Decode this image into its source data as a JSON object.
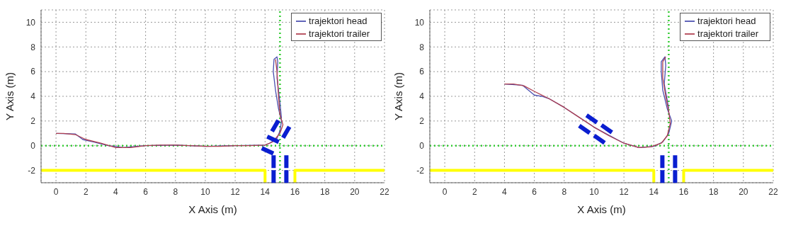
{
  "chart_data": [
    {
      "type": "line",
      "xlabel": "X Axis (m)",
      "ylabel": "Y Axis (m)",
      "xlim": [
        -1,
        22
      ],
      "ylim": [
        -3,
        11
      ],
      "xticks": [
        0,
        2,
        4,
        6,
        8,
        10,
        12,
        14,
        16,
        18,
        20,
        22
      ],
      "yticks": [
        -2,
        0,
        2,
        4,
        6,
        8,
        10
      ],
      "grid": true,
      "legend": "top right",
      "marker": "none",
      "line_style": "solid",
      "ref_lines": [
        {
          "axis": "y",
          "value": 0,
          "color": "#33cc33",
          "line_style": "dotted"
        },
        {
          "axis": "x",
          "value": 15,
          "color": "#33cc33",
          "line_style": "dotted"
        }
      ],
      "series": [
        {
          "color": "#ffff00",
          "x": [
            -1,
            14,
            14
          ],
          "values": [
            -2,
            -2,
            -3
          ]
        },
        {
          "color": "#ffff00",
          "x": [
            16,
            16,
            22
          ],
          "values": [
            -3,
            -2,
            -2
          ]
        },
        {
          "name": "trajektori head",
          "color": "#4b4fb0",
          "x": [
            0,
            1.3,
            1.8,
            2.5,
            3.5,
            4.5,
            6,
            8,
            10,
            12,
            14,
            14.3,
            14.8,
            15,
            15.1,
            14.9,
            14.7,
            14.55,
            14.6,
            14.8,
            14.85,
            14.8,
            15,
            15.1
          ],
          "values": [
            1,
            0.95,
            0.5,
            0.3,
            0,
            -0.15,
            0,
            0.05,
            -0.05,
            0,
            0.05,
            0.2,
            0.6,
            1.2,
            2,
            3,
            4.5,
            6,
            7,
            7.2,
            6.8,
            5.5,
            3.5,
            2.2
          ]
        },
        {
          "name": "trajektori trailer",
          "color": "#b04050",
          "x": [
            0,
            0.5,
            1.3,
            2,
            3,
            4,
            5,
            6,
            7,
            8,
            9,
            10,
            11,
            12,
            13,
            14,
            14.5,
            15,
            15.2,
            15,
            14.9,
            14.8,
            14.7
          ],
          "values": [
            1,
            1,
            0.9,
            0.5,
            0.2,
            -0.15,
            -0.15,
            0,
            0.05,
            0.05,
            0,
            -0.05,
            -0.05,
            0,
            0,
            0.05,
            0.3,
            1,
            1.7,
            2.5,
            4,
            6,
            7
          ]
        }
      ]
    },
    {
      "type": "line",
      "xlabel": "X Axis (m)",
      "ylabel": "Y Axis (m)",
      "xlim": [
        -1,
        22
      ],
      "ylim": [
        -3,
        11
      ],
      "xticks": [
        0,
        2,
        4,
        6,
        8,
        10,
        12,
        14,
        16,
        18,
        20,
        22
      ],
      "yticks": [
        -2,
        0,
        2,
        4,
        6,
        8,
        10
      ],
      "grid": true,
      "legend": "top right",
      "marker": "none",
      "line_style": "solid",
      "ref_lines": [
        {
          "axis": "y",
          "value": 0,
          "color": "#33cc33",
          "line_style": "dotted"
        },
        {
          "axis": "x",
          "value": 15,
          "color": "#33cc33",
          "line_style": "dotted"
        }
      ],
      "series": [
        {
          "color": "#ffff00",
          "x": [
            -1,
            14,
            14
          ],
          "values": [
            -2,
            -2,
            -3
          ]
        },
        {
          "color": "#ffff00",
          "x": [
            16,
            16,
            22
          ],
          "values": [
            -3,
            -2,
            -2
          ]
        },
        {
          "name": "trajektori head",
          "color": "#4b4fb0",
          "x": [
            4,
            5.2,
            5.6,
            6,
            6.5,
            7,
            8,
            10,
            12,
            13,
            14,
            14.6,
            15,
            15.2,
            14.9,
            14.6,
            14.5,
            14.5,
            14.75,
            14.8,
            14.7,
            15
          ],
          "values": [
            5,
            4.9,
            4.5,
            4.1,
            4,
            3.8,
            3.1,
            1.5,
            0.2,
            -0.15,
            -0.05,
            0.3,
            1,
            2,
            3,
            4.5,
            6,
            6.8,
            7.2,
            6.5,
            5,
            3
          ]
        },
        {
          "name": "trajektori trailer",
          "color": "#b04050",
          "x": [
            4,
            4.6,
            5.3,
            6,
            7,
            8,
            9,
            10,
            11,
            12,
            13,
            13.8,
            14.5,
            14.9,
            15.1,
            15,
            14.8,
            14.6,
            14.6,
            14.8
          ],
          "values": [
            5,
            5,
            4.85,
            4.4,
            3.8,
            3.1,
            2.3,
            1.5,
            0.8,
            0.2,
            -0.15,
            -0.1,
            0.2,
            0.8,
            1.8,
            2.8,
            4,
            5.5,
            6.8,
            7.2
          ]
        }
      ]
    }
  ]
}
